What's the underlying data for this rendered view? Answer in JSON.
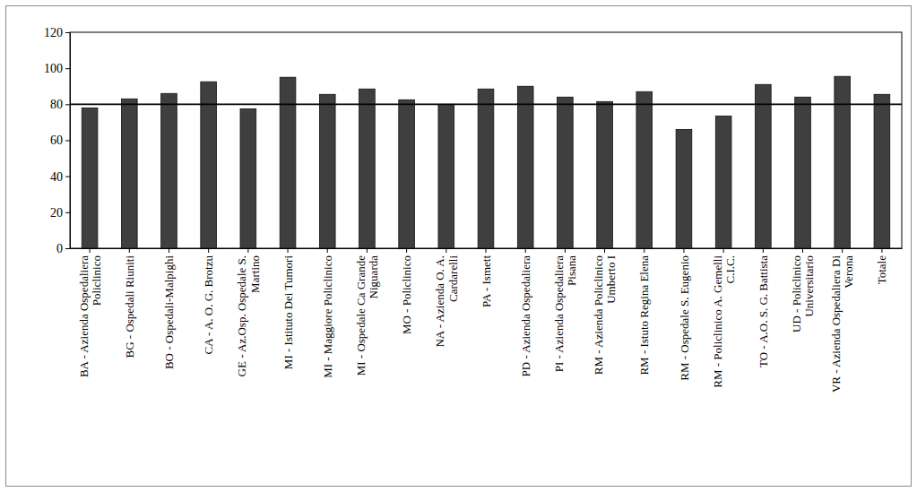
{
  "chart_data": {
    "type": "bar",
    "categories": [
      "BA - Azienda Ospedaliera Policlinico",
      "BG - Ospedali Riuniti",
      "BO - Ospedali-Malpighi",
      "CA - A. O. G. Brotzu",
      "GE - Az.Osp. Ospedale S. Martino",
      "MI - Istituto Dei Tumori",
      "MI - Maggiore Policlinico",
      "MI - Ospedale Ca Grande Niguarda",
      "MO - Policlinico",
      "NA - Azienda O. A. Cardarelli",
      "PA - Ismett",
      "PD - Azienda Ospedaliera",
      "PI - Azienda Ospedaliera Pisana",
      "RM - Azienda Policlinico Umberto I",
      "RM - Istuto Regina Elena",
      "RM - Ospedale S. Eugenio",
      "RM - Policlinico A. Gemelli C.I.C.",
      "TO - A.O. S. G. Battista",
      "UD - Policlinico Universitario",
      "VR - Azienda Ospedaliera Di Verona",
      "Totale"
    ],
    "values": [
      78,
      83,
      86,
      92.5,
      77.5,
      95,
      85.5,
      88.5,
      82.5,
      80,
      88.5,
      90,
      84,
      81.5,
      87,
      66,
      73.5,
      91,
      84,
      95.5,
      85.5
    ],
    "color": "#3f3f3f",
    "reference_line": 80,
    "ylim": [
      0,
      120
    ],
    "yticks": [
      0,
      20,
      40,
      60,
      80,
      100,
      120
    ],
    "grid": false
  }
}
